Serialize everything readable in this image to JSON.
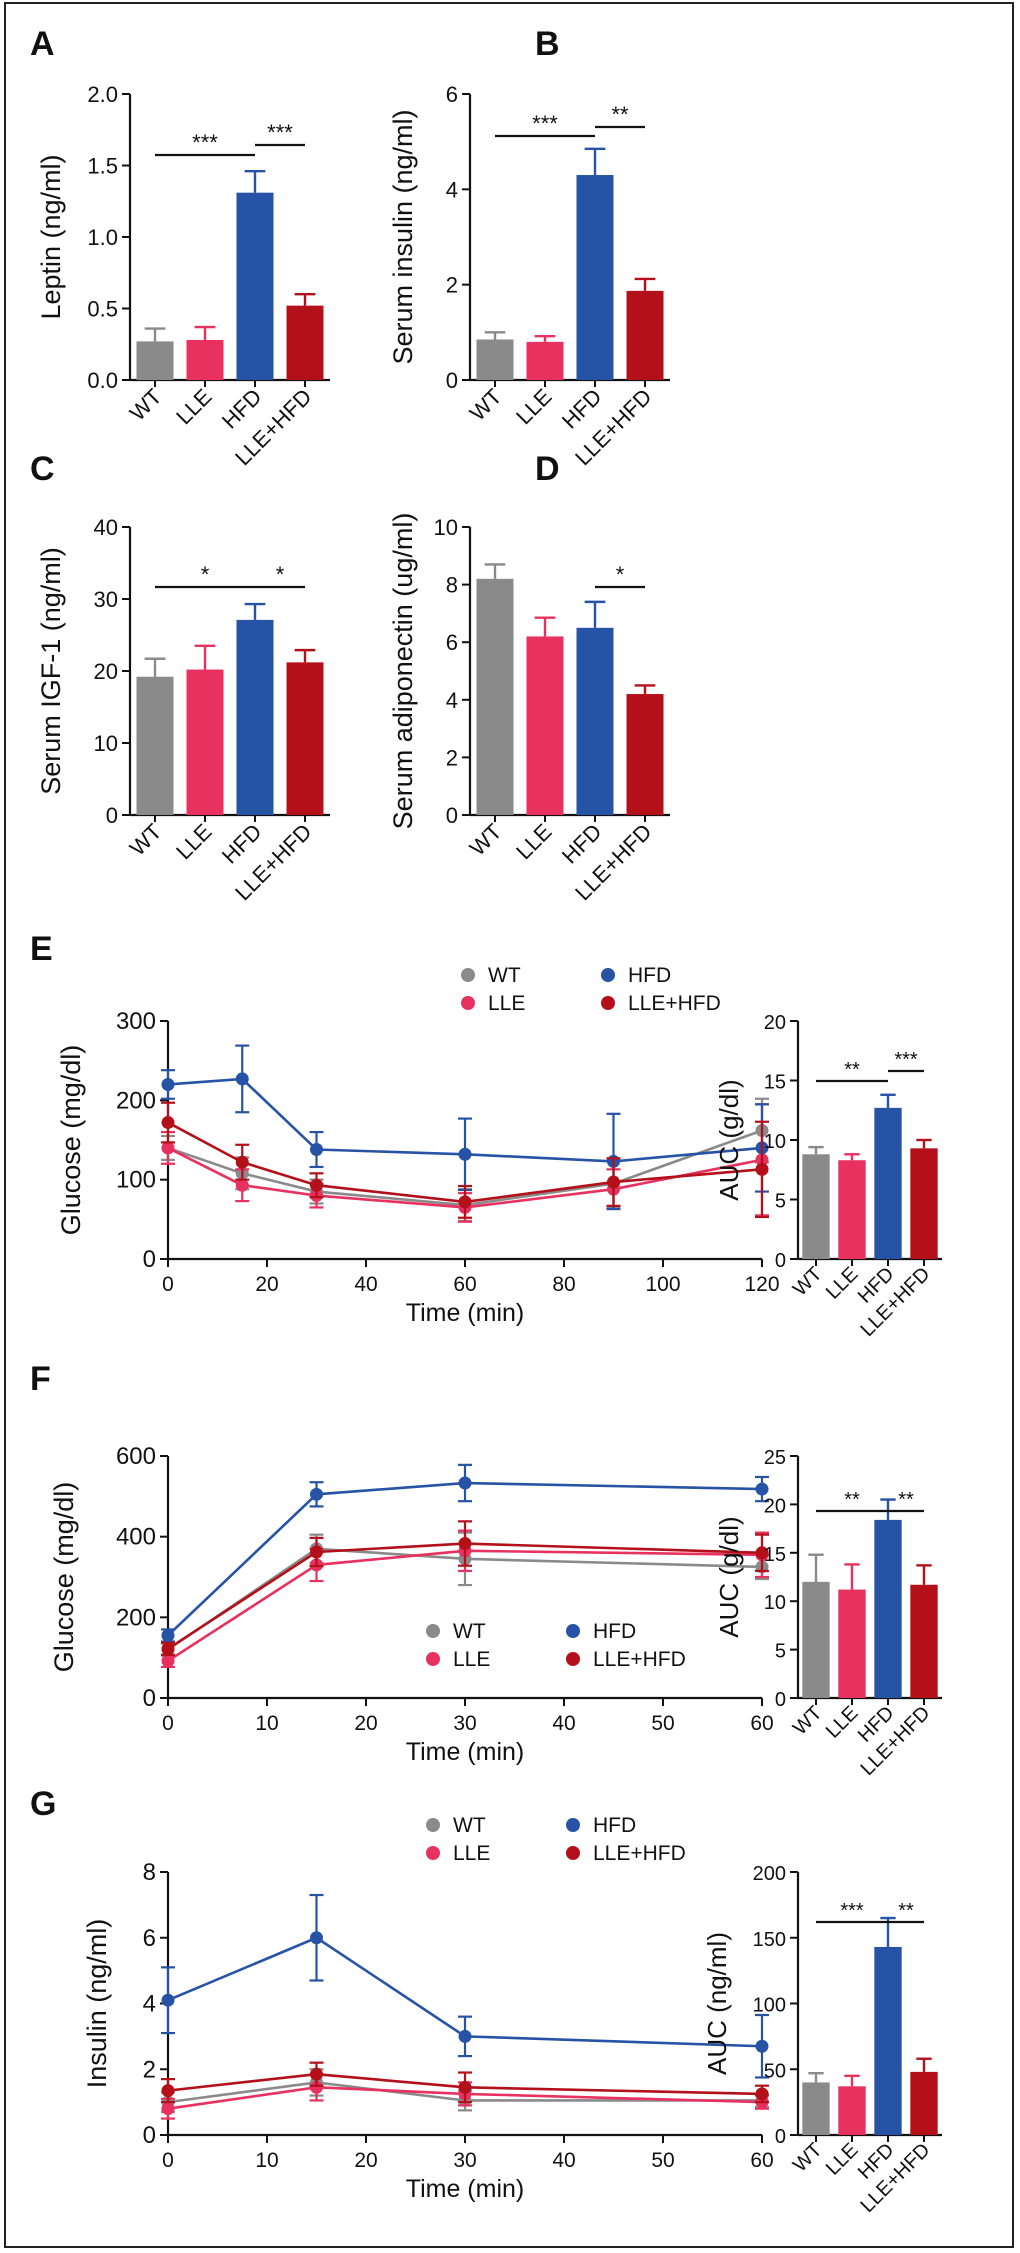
{
  "colors": {
    "WT": "#8a8a8a",
    "LLE": "#e8315f",
    "HFD": "#2653a5",
    "LLE+HFD": "#b3101a",
    "axis": "#111111"
  },
  "chart_data": [
    {
      "panel": "A",
      "type": "bar",
      "ylabel": "Leptin (ng/ml)",
      "ylim": [
        0,
        2.0
      ],
      "yticks": [
        "0.0",
        "0.5",
        "1.0",
        "1.5",
        "2.0"
      ],
      "categories": [
        "WT",
        "LLE",
        "HFD",
        "LLE+HFD"
      ],
      "values": [
        0.27,
        0.28,
        1.31,
        0.52
      ],
      "errors": [
        0.09,
        0.09,
        0.15,
        0.08
      ],
      "sig": [
        {
          "from": 0,
          "to": 2,
          "label": "***"
        },
        {
          "from": 2,
          "to": 3,
          "label": "***"
        }
      ]
    },
    {
      "panel": "B",
      "type": "bar",
      "ylabel": "Serum insulin (ng/ml)",
      "ylim": [
        0,
        6
      ],
      "yticks": [
        "0",
        "2",
        "4",
        "6"
      ],
      "categories": [
        "WT",
        "LLE",
        "HFD",
        "LLE+HFD"
      ],
      "values": [
        0.85,
        0.8,
        4.3,
        1.87
      ],
      "errors": [
        0.15,
        0.12,
        0.55,
        0.25
      ],
      "sig": [
        {
          "from": 0,
          "to": 2,
          "label": "***"
        },
        {
          "from": 2,
          "to": 3,
          "label": "**"
        }
      ]
    },
    {
      "panel": "C",
      "type": "bar",
      "ylabel": "Serum IGF-1 (ng/ml)",
      "ylim": [
        0,
        40
      ],
      "yticks": [
        "0",
        "10",
        "20",
        "30",
        "40"
      ],
      "categories": [
        "WT",
        "LLE",
        "HFD",
        "LLE+HFD"
      ],
      "values": [
        19.2,
        20.2,
        27.1,
        21.2
      ],
      "errors": [
        2.5,
        3.3,
        2.2,
        1.7
      ],
      "sig": [
        {
          "from": 0,
          "to": 2,
          "label": "*"
        },
        {
          "from": 2,
          "to": 3,
          "label": "*"
        }
      ]
    },
    {
      "panel": "D",
      "type": "bar",
      "ylabel": "Serum adiponectin (ug/ml)",
      "ylim": [
        0,
        10
      ],
      "yticks": [
        "0",
        "2",
        "4",
        "6",
        "8",
        "10"
      ],
      "categories": [
        "WT",
        "LLE",
        "HFD",
        "LLE+HFD"
      ],
      "values": [
        8.2,
        6.2,
        6.5,
        4.2
      ],
      "errors": [
        0.5,
        0.65,
        0.9,
        0.3
      ],
      "sig": [
        {
          "from": 2,
          "to": 3,
          "label": "*"
        }
      ]
    },
    {
      "panel": "E",
      "type": "line",
      "xlabel": "Time (min)",
      "ylabel": "Glucose (mg/dl)",
      "xlim": [
        0,
        120
      ],
      "ylim": [
        0,
        300
      ],
      "xticks": [
        "0",
        "20",
        "40",
        "60",
        "80",
        "100",
        "120"
      ],
      "yticks": [
        "0",
        "100",
        "200",
        "300"
      ],
      "x": [
        0,
        15,
        30,
        60,
        90,
        120
      ],
      "legend": [
        "WT",
        "LLE",
        "HFD",
        "LLE+HFD"
      ],
      "series": [
        {
          "name": "WT",
          "values": [
            140,
            108,
            85,
            68,
            95,
            162
          ],
          "errors": [
            15,
            20,
            15,
            20,
            30,
            40
          ]
        },
        {
          "name": "LLE",
          "values": [
            140,
            93,
            80,
            65,
            88,
            125
          ],
          "errors": [
            20,
            20,
            15,
            18,
            25,
            70
          ]
        },
        {
          "name": "HFD",
          "values": [
            220,
            227,
            138,
            132,
            123,
            140
          ],
          "errors": [
            18,
            42,
            22,
            45,
            60,
            55
          ]
        },
        {
          "name": "LLE+HFD",
          "values": [
            172,
            122,
            93,
            72,
            97,
            113
          ],
          "errors": [
            25,
            22,
            15,
            20,
            30,
            60
          ]
        }
      ]
    },
    {
      "panel": "E-AUC",
      "type": "bar",
      "ylabel": "AUC (g/dl)",
      "ylim": [
        0,
        20
      ],
      "yticks": [
        "0",
        "5",
        "10",
        "15",
        "20"
      ],
      "categories": [
        "WT",
        "LLE",
        "HFD",
        "LLE+HFD"
      ],
      "values": [
        8.8,
        8.3,
        12.7,
        9.3
      ],
      "errors": [
        0.6,
        0.5,
        1.1,
        0.7
      ],
      "sig": [
        {
          "from": 0,
          "to": 2,
          "label": "**"
        },
        {
          "from": 2,
          "to": 3,
          "label": "***"
        }
      ]
    },
    {
      "panel": "F",
      "type": "line",
      "xlabel": "Time (min)",
      "ylabel": "Glucose (mg/dl)",
      "xlim": [
        0,
        60
      ],
      "ylim": [
        0,
        600
      ],
      "xticks": [
        "0",
        "10",
        "20",
        "30",
        "40",
        "50",
        "60"
      ],
      "yticks": [
        "0",
        "200",
        "400",
        "600"
      ],
      "x": [
        0,
        15,
        30,
        60
      ],
      "legend": [
        "WT",
        "LLE",
        "HFD",
        "LLE+HFD"
      ],
      "series": [
        {
          "name": "WT",
          "values": [
            120,
            370,
            345,
            325
          ],
          "errors": [
            15,
            35,
            65,
            30
          ]
        },
        {
          "name": "LLE",
          "values": [
            92,
            330,
            365,
            355
          ],
          "errors": [
            15,
            40,
            50,
            55
          ]
        },
        {
          "name": "HFD",
          "values": [
            155,
            505,
            533,
            518
          ],
          "errors": [
            15,
            30,
            45,
            30
          ]
        },
        {
          "name": "LLE+HFD",
          "values": [
            122,
            362,
            383,
            360
          ],
          "errors": [
            15,
            35,
            55,
            45
          ]
        }
      ]
    },
    {
      "panel": "F-AUC",
      "type": "bar",
      "ylabel": "AUC (g/dl)",
      "ylim": [
        0,
        25
      ],
      "yticks": [
        "0",
        "5",
        "10",
        "15",
        "20",
        "25"
      ],
      "categories": [
        "WT",
        "LLE",
        "HFD",
        "LLE+HFD"
      ],
      "values": [
        12.0,
        11.2,
        18.4,
        11.7
      ],
      "errors": [
        2.8,
        2.6,
        2.1,
        2.0
      ],
      "sig": [
        {
          "from": 0,
          "to": 2,
          "label": "**"
        },
        {
          "from": 2,
          "to": 3,
          "label": "**"
        }
      ]
    },
    {
      "panel": "G",
      "type": "line",
      "xlabel": "Time (min)",
      "ylabel": "Insulin (ng/ml)",
      "xlim": [
        0,
        60
      ],
      "ylim": [
        0,
        8
      ],
      "xticks": [
        "0",
        "10",
        "20",
        "30",
        "40",
        "50",
        "60"
      ],
      "yticks": [
        "0",
        "2",
        "4",
        "6",
        "8"
      ],
      "x": [
        0,
        15,
        30,
        60
      ],
      "legend": [
        "WT",
        "LLE",
        "HFD",
        "LLE+HFD"
      ],
      "series": [
        {
          "name": "WT",
          "values": [
            1.0,
            1.6,
            1.05,
            1.05
          ],
          "errors": [
            0.3,
            0.4,
            0.3,
            0.2
          ]
        },
        {
          "name": "LLE",
          "values": [
            0.8,
            1.45,
            1.25,
            1.0
          ],
          "errors": [
            0.3,
            0.4,
            0.35,
            0.2
          ]
        },
        {
          "name": "HFD",
          "values": [
            4.1,
            6.0,
            3.0,
            2.7
          ],
          "errors": [
            1.0,
            1.3,
            0.6,
            0.95
          ]
        },
        {
          "name": "LLE+HFD",
          "values": [
            1.35,
            1.85,
            1.45,
            1.25
          ],
          "errors": [
            0.35,
            0.35,
            0.45,
            0.25
          ]
        }
      ]
    },
    {
      "panel": "G-AUC",
      "type": "bar",
      "ylabel": "AUC (ng/ml)",
      "ylim": [
        0,
        200
      ],
      "yticks": [
        "0",
        "50",
        "100",
        "150",
        "200"
      ],
      "categories": [
        "WT",
        "LLE",
        "HFD",
        "LLE+HFD"
      ],
      "values": [
        40,
        37,
        143,
        48
      ],
      "errors": [
        7,
        8,
        22,
        10
      ],
      "sig": [
        {
          "from": 0,
          "to": 2,
          "label": "***"
        },
        {
          "from": 2,
          "to": 3,
          "label": "**"
        }
      ]
    }
  ]
}
